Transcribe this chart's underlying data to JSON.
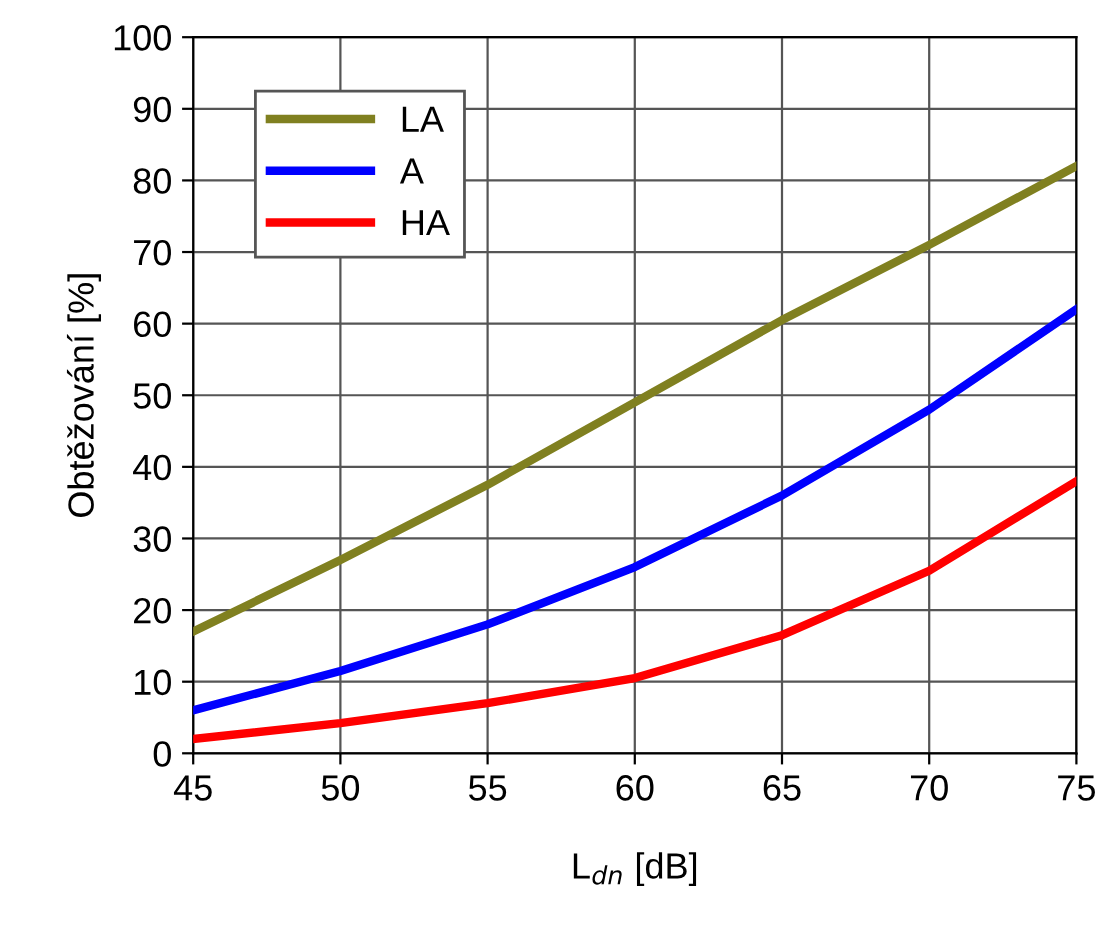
{
  "chart_data": {
    "type": "line",
    "xlabel": "L$_{dn}$ [dB]",
    "ylabel": "Obtěžování [%]",
    "x": [
      45,
      50,
      55,
      60,
      65,
      70,
      75
    ],
    "series": [
      {
        "name": "LA",
        "color": "#808020",
        "values": [
          17,
          27,
          37.5,
          49,
          60.5,
          71,
          82
        ]
      },
      {
        "name": "A",
        "color": "#0000ff",
        "values": [
          6,
          11.5,
          18,
          26,
          36,
          48,
          62
        ]
      },
      {
        "name": "HA",
        "color": "#ff0000",
        "values": [
          2,
          4.2,
          7,
          10.5,
          16.5,
          25.5,
          38
        ]
      }
    ],
    "xlim": [
      45,
      75
    ],
    "ylim": [
      0,
      100
    ],
    "xticks": [
      45,
      50,
      55,
      60,
      65,
      70,
      75
    ],
    "yticks": [
      0,
      10,
      20,
      30,
      40,
      50,
      60,
      70,
      80,
      90,
      100
    ],
    "grid": true,
    "legend": "top left",
    "marker": "none",
    "line_style": "solid"
  }
}
